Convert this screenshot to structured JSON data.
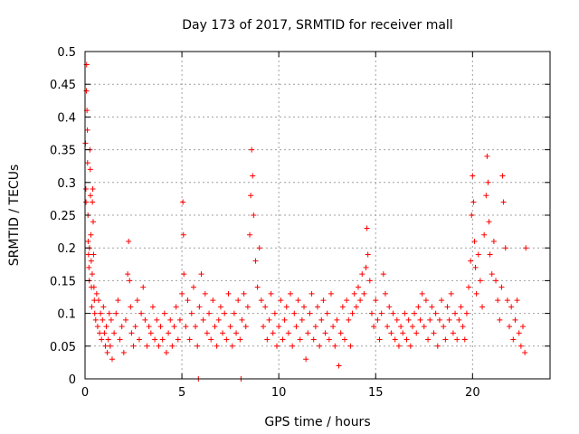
{
  "chart_data": {
    "type": "scatter",
    "title": "Day 173 of 2017, SRMTID for receiver mall",
    "xlabel": "GPS time / hours",
    "ylabel": "SRMTID / TECUs",
    "xlim": [
      0,
      24
    ],
    "ylim": [
      0,
      0.5
    ],
    "xticks": [
      0,
      5,
      10,
      15,
      20
    ],
    "yticks": [
      0,
      0.05,
      0.1,
      0.15,
      0.2,
      0.25,
      0.3,
      0.35,
      0.4,
      0.45,
      0.5
    ],
    "xtick_labels": [
      "0",
      "5",
      "10",
      "15",
      "20"
    ],
    "ytick_labels": [
      "0",
      "0.05",
      "0.1",
      "0.15",
      "0.2",
      "0.25",
      "0.3",
      "0.35",
      "0.4",
      "0.45",
      "0.5"
    ],
    "grid": true,
    "legend": "none",
    "marker": "+",
    "color": "#ff0000",
    "points": [
      [
        0.02,
        0.36
      ],
      [
        0.04,
        0.29
      ],
      [
        0.05,
        0.27
      ],
      [
        0.07,
        0.44
      ],
      [
        0.08,
        0.48
      ],
      [
        0.1,
        0.41
      ],
      [
        0.12,
        0.38
      ],
      [
        0.13,
        0.33
      ],
      [
        0.15,
        0.25
      ],
      [
        0.16,
        0.21
      ],
      [
        0.18,
        0.19
      ],
      [
        0.2,
        0.17
      ],
      [
        0.22,
        0.15
      ],
      [
        0.23,
        0.2
      ],
      [
        0.25,
        0.35
      ],
      [
        0.27,
        0.32
      ],
      [
        0.28,
        0.28
      ],
      [
        0.3,
        0.22
      ],
      [
        0.32,
        0.18
      ],
      [
        0.33,
        0.14
      ],
      [
        0.35,
        0.11
      ],
      [
        0.37,
        0.16
      ],
      [
        0.38,
        0.27
      ],
      [
        0.4,
        0.29
      ],
      [
        0.42,
        0.24
      ],
      [
        0.44,
        0.19
      ],
      [
        0.46,
        0.14
      ],
      [
        0.48,
        0.12
      ],
      [
        0.5,
        0.1
      ],
      [
        0.55,
        0.09
      ],
      [
        0.6,
        0.13
      ],
      [
        0.65,
        0.08
      ],
      [
        0.7,
        0.12
      ],
      [
        0.75,
        0.07
      ],
      [
        0.8,
        0.1
      ],
      [
        0.85,
        0.06
      ],
      [
        0.9,
        0.09
      ],
      [
        0.95,
        0.11
      ],
      [
        1.0,
        0.07
      ],
      [
        1.05,
        0.05
      ],
      [
        1.1,
        0.08
      ],
      [
        1.15,
        0.04
      ],
      [
        1.2,
        0.06
      ],
      [
        1.25,
        0.1
      ],
      [
        1.3,
        0.05
      ],
      [
        1.35,
        0.09
      ],
      [
        1.4,
        0.03
      ],
      [
        1.5,
        0.07
      ],
      [
        1.6,
        0.1
      ],
      [
        1.7,
        0.12
      ],
      [
        1.8,
        0.06
      ],
      [
        1.9,
        0.08
      ],
      [
        2.0,
        0.04
      ],
      [
        2.1,
        0.09
      ],
      [
        2.2,
        0.16
      ],
      [
        2.25,
        0.21
      ],
      [
        2.3,
        0.15
      ],
      [
        2.35,
        0.11
      ],
      [
        2.4,
        0.07
      ],
      [
        2.5,
        0.05
      ],
      [
        2.6,
        0.08
      ],
      [
        2.7,
        0.12
      ],
      [
        2.8,
        0.06
      ],
      [
        2.9,
        0.1
      ],
      [
        3.0,
        0.14
      ],
      [
        3.1,
        0.09
      ],
      [
        3.2,
        0.05
      ],
      [
        3.3,
        0.08
      ],
      [
        3.4,
        0.07
      ],
      [
        3.5,
        0.11
      ],
      [
        3.6,
        0.06
      ],
      [
        3.7,
        0.09
      ],
      [
        3.8,
        0.05
      ],
      [
        3.9,
        0.08
      ],
      [
        4.0,
        0.06
      ],
      [
        4.1,
        0.1
      ],
      [
        4.2,
        0.04
      ],
      [
        4.3,
        0.07
      ],
      [
        4.4,
        0.09
      ],
      [
        4.5,
        0.05
      ],
      [
        4.6,
        0.08
      ],
      [
        4.7,
        0.11
      ],
      [
        4.8,
        0.06
      ],
      [
        4.9,
        0.09
      ],
      [
        5.0,
        0.13
      ],
      [
        5.05,
        0.27
      ],
      [
        5.08,
        0.22
      ],
      [
        5.1,
        0.16
      ],
      [
        5.2,
        0.08
      ],
      [
        5.3,
        0.12
      ],
      [
        5.4,
        0.06
      ],
      [
        5.5,
        0.1
      ],
      [
        5.6,
        0.14
      ],
      [
        5.7,
        0.08
      ],
      [
        5.8,
        0.05
      ],
      [
        5.85,
        0.0
      ],
      [
        5.9,
        0.11
      ],
      [
        6.0,
        0.16
      ],
      [
        6.1,
        0.09
      ],
      [
        6.2,
        0.13
      ],
      [
        6.3,
        0.07
      ],
      [
        6.4,
        0.1
      ],
      [
        6.5,
        0.06
      ],
      [
        6.6,
        0.12
      ],
      [
        6.7,
        0.08
      ],
      [
        6.8,
        0.05
      ],
      [
        6.9,
        0.09
      ],
      [
        7.0,
        0.11
      ],
      [
        7.1,
        0.07
      ],
      [
        7.2,
        0.1
      ],
      [
        7.3,
        0.06
      ],
      [
        7.4,
        0.13
      ],
      [
        7.5,
        0.08
      ],
      [
        7.6,
        0.05
      ],
      [
        7.7,
        0.1
      ],
      [
        7.8,
        0.07
      ],
      [
        7.9,
        0.12
      ],
      [
        8.0,
        0.06
      ],
      [
        8.05,
        0.0
      ],
      [
        8.1,
        0.09
      ],
      [
        8.2,
        0.13
      ],
      [
        8.3,
        0.08
      ],
      [
        8.4,
        0.11
      ],
      [
        8.5,
        0.22
      ],
      [
        8.55,
        0.28
      ],
      [
        8.6,
        0.35
      ],
      [
        8.65,
        0.31
      ],
      [
        8.7,
        0.25
      ],
      [
        8.8,
        0.18
      ],
      [
        8.9,
        0.14
      ],
      [
        9.0,
        0.2
      ],
      [
        9.1,
        0.12
      ],
      [
        9.2,
        0.08
      ],
      [
        9.3,
        0.11
      ],
      [
        9.4,
        0.06
      ],
      [
        9.5,
        0.09
      ],
      [
        9.6,
        0.13
      ],
      [
        9.7,
        0.07
      ],
      [
        9.8,
        0.1
      ],
      [
        9.9,
        0.05
      ],
      [
        10.0,
        0.08
      ],
      [
        10.1,
        0.12
      ],
      [
        10.2,
        0.06
      ],
      [
        10.3,
        0.09
      ],
      [
        10.4,
        0.11
      ],
      [
        10.5,
        0.07
      ],
      [
        10.6,
        0.13
      ],
      [
        10.7,
        0.05
      ],
      [
        10.8,
        0.1
      ],
      [
        10.9,
        0.08
      ],
      [
        11.0,
        0.12
      ],
      [
        11.1,
        0.06
      ],
      [
        11.2,
        0.09
      ],
      [
        11.3,
        0.11
      ],
      [
        11.4,
        0.03
      ],
      [
        11.5,
        0.07
      ],
      [
        11.6,
        0.1
      ],
      [
        11.7,
        0.13
      ],
      [
        11.8,
        0.06
      ],
      [
        11.9,
        0.08
      ],
      [
        12.0,
        0.11
      ],
      [
        12.1,
        0.05
      ],
      [
        12.2,
        0.09
      ],
      [
        12.3,
        0.12
      ],
      [
        12.4,
        0.07
      ],
      [
        12.5,
        0.1
      ],
      [
        12.6,
        0.06
      ],
      [
        12.7,
        0.13
      ],
      [
        12.8,
        0.08
      ],
      [
        12.9,
        0.05
      ],
      [
        13.0,
        0.09
      ],
      [
        13.1,
        0.02
      ],
      [
        13.2,
        0.07
      ],
      [
        13.3,
        0.11
      ],
      [
        13.4,
        0.06
      ],
      [
        13.5,
        0.12
      ],
      [
        13.6,
        0.09
      ],
      [
        13.7,
        0.05
      ],
      [
        13.8,
        0.1
      ],
      [
        13.9,
        0.13
      ],
      [
        14.0,
        0.11
      ],
      [
        14.1,
        0.14
      ],
      [
        14.2,
        0.12
      ],
      [
        14.3,
        0.16
      ],
      [
        14.4,
        0.13
      ],
      [
        14.5,
        0.17
      ],
      [
        14.55,
        0.23
      ],
      [
        14.6,
        0.19
      ],
      [
        14.7,
        0.15
      ],
      [
        14.8,
        0.1
      ],
      [
        14.9,
        0.08
      ],
      [
        15.0,
        0.12
      ],
      [
        15.1,
        0.09
      ],
      [
        15.2,
        0.06
      ],
      [
        15.3,
        0.1
      ],
      [
        15.4,
        0.16
      ],
      [
        15.5,
        0.13
      ],
      [
        15.6,
        0.08
      ],
      [
        15.7,
        0.11
      ],
      [
        15.8,
        0.07
      ],
      [
        15.9,
        0.1
      ],
      [
        16.0,
        0.06
      ],
      [
        16.1,
        0.09
      ],
      [
        16.2,
        0.05
      ],
      [
        16.3,
        0.08
      ],
      [
        16.4,
        0.07
      ],
      [
        16.5,
        0.1
      ],
      [
        16.6,
        0.06
      ],
      [
        16.7,
        0.09
      ],
      [
        16.8,
        0.05
      ],
      [
        16.9,
        0.08
      ],
      [
        17.0,
        0.1
      ],
      [
        17.1,
        0.07
      ],
      [
        17.2,
        0.11
      ],
      [
        17.3,
        0.09
      ],
      [
        17.4,
        0.13
      ],
      [
        17.5,
        0.08
      ],
      [
        17.6,
        0.12
      ],
      [
        17.7,
        0.06
      ],
      [
        17.8,
        0.09
      ],
      [
        17.9,
        0.11
      ],
      [
        18.0,
        0.07
      ],
      [
        18.1,
        0.1
      ],
      [
        18.2,
        0.05
      ],
      [
        18.3,
        0.09
      ],
      [
        18.4,
        0.12
      ],
      [
        18.5,
        0.08
      ],
      [
        18.6,
        0.06
      ],
      [
        18.7,
        0.11
      ],
      [
        18.8,
        0.09
      ],
      [
        18.9,
        0.13
      ],
      [
        19.0,
        0.07
      ],
      [
        19.1,
        0.1
      ],
      [
        19.2,
        0.06
      ],
      [
        19.3,
        0.09
      ],
      [
        19.4,
        0.11
      ],
      [
        19.5,
        0.08
      ],
      [
        19.6,
        0.06
      ],
      [
        19.7,
        0.1
      ],
      [
        19.8,
        0.14
      ],
      [
        19.9,
        0.18
      ],
      [
        19.95,
        0.25
      ],
      [
        20.0,
        0.31
      ],
      [
        20.05,
        0.27
      ],
      [
        20.1,
        0.21
      ],
      [
        20.15,
        0.17
      ],
      [
        20.2,
        0.13
      ],
      [
        20.3,
        0.19
      ],
      [
        20.4,
        0.15
      ],
      [
        20.5,
        0.11
      ],
      [
        20.6,
        0.22
      ],
      [
        20.7,
        0.28
      ],
      [
        20.75,
        0.34
      ],
      [
        20.8,
        0.3
      ],
      [
        20.85,
        0.24
      ],
      [
        20.9,
        0.19
      ],
      [
        21.0,
        0.16
      ],
      [
        21.1,
        0.21
      ],
      [
        21.2,
        0.15
      ],
      [
        21.3,
        0.12
      ],
      [
        21.4,
        0.09
      ],
      [
        21.5,
        0.14
      ],
      [
        21.55,
        0.31
      ],
      [
        21.6,
        0.27
      ],
      [
        21.7,
        0.2
      ],
      [
        21.8,
        0.12
      ],
      [
        21.9,
        0.08
      ],
      [
        22.0,
        0.11
      ],
      [
        22.1,
        0.06
      ],
      [
        22.2,
        0.09
      ],
      [
        22.3,
        0.12
      ],
      [
        22.4,
        0.07
      ],
      [
        22.5,
        0.05
      ],
      [
        22.6,
        0.08
      ],
      [
        22.7,
        0.04
      ],
      [
        22.75,
        0.2
      ]
    ]
  }
}
